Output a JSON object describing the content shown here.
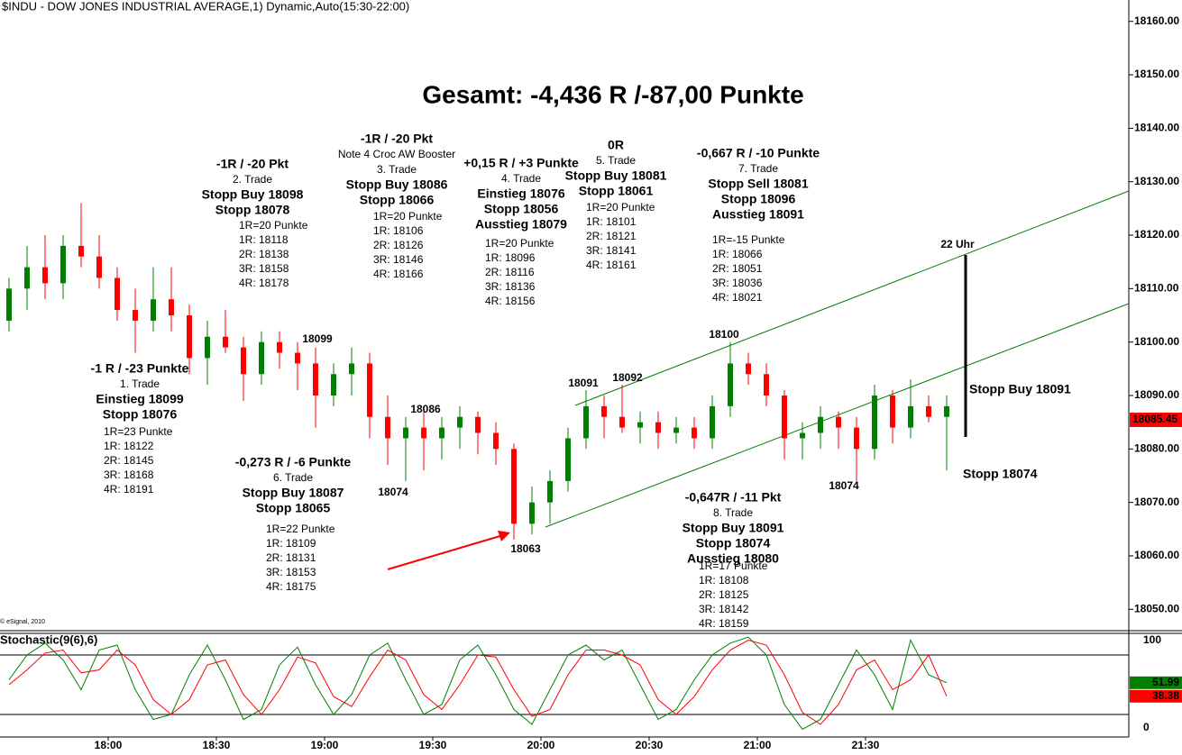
{
  "chart_data": [
    {
      "type": "candlestick",
      "title": "$INDU - DOW JONES INDUSTRIAL AVERAGE,1) Dynamic,Auto(15:30-22:00)",
      "headline": "Gesamt: -4,436 R /-87,00 Punkte",
      "copyright": "© eSignal, 2010",
      "categories": [
        null,
        null,
        null,
        null,
        null,
        null,
        "18:00",
        null,
        null,
        null,
        null,
        null,
        "18:30",
        null,
        null,
        null,
        null,
        null,
        "19:00",
        null,
        null,
        null,
        null,
        null,
        "19:30",
        null,
        null,
        null,
        null,
        null,
        "20:00",
        null,
        null,
        null,
        null,
        null,
        "20:30",
        null,
        null,
        null,
        null,
        null,
        "21:00",
        null,
        null,
        null,
        null,
        null,
        "21:30",
        null,
        null,
        null,
        null
      ],
      "open": [
        18104,
        18110,
        18114,
        18111,
        18118,
        18116,
        18112,
        18106,
        18104,
        18108,
        18105,
        18097,
        18101,
        18099,
        18094,
        18100,
        18098,
        18096,
        18090,
        18094,
        18096,
        18086,
        18082,
        18084,
        18082,
        18084,
        18086,
        18083,
        18080,
        18066,
        18070,
        18074,
        18082,
        18088,
        18086,
        18084,
        18085,
        18083,
        18084,
        18082,
        18088,
        18096,
        18094,
        18090,
        18082,
        18083,
        18086,
        18084,
        18080,
        18090,
        18084,
        18088,
        18086
      ],
      "high": [
        18112,
        18118,
        18120,
        18120,
        18126,
        18120,
        18114,
        18110,
        18114,
        18114,
        18107,
        18104,
        18106,
        18101,
        18102,
        18102,
        18100,
        18099,
        18096,
        18099,
        18098,
        18090,
        18086,
        18087,
        18086,
        18088,
        18087,
        18085,
        18081,
        18073,
        18076,
        18084,
        18091,
        18090,
        18092,
        18087,
        18087,
        18086,
        18086,
        18090,
        18100,
        18098,
        18096,
        18091,
        18085,
        18088,
        18087,
        18086,
        18092,
        18091,
        18093,
        18090,
        18090
      ],
      "low": [
        18102,
        18106,
        18108,
        18108,
        18114,
        18110,
        18104,
        18098,
        18102,
        18102,
        18094,
        18092,
        18098,
        18089,
        18092,
        18095,
        18091,
        18084,
        18088,
        18090,
        18082,
        18077,
        18074,
        18076,
        18078,
        18080,
        18079,
        18077,
        18063,
        18064,
        18066,
        18072,
        18080,
        18082,
        18083,
        18081,
        18080,
        18081,
        18080,
        18080,
        18086,
        18092,
        18088,
        18078,
        18078,
        18080,
        18080,
        18074,
        18078,
        18081,
        18082,
        18085,
        18076
      ],
      "close": [
        18110,
        18114,
        18111,
        18118,
        18116,
        18112,
        18106,
        18104,
        18108,
        18105,
        18097,
        18101,
        18099,
        18094,
        18100,
        18098,
        18096,
        18090,
        18094,
        18096,
        18086,
        18082,
        18084,
        18082,
        18084,
        18086,
        18083,
        18080,
        18066,
        18070,
        18074,
        18082,
        18088,
        18086,
        18084,
        18085,
        18083,
        18084,
        18082,
        18088,
        18096,
        18094,
        18090,
        18082,
        18083,
        18086,
        18084,
        18080,
        18090,
        18084,
        18088,
        18086,
        18088
      ],
      "up_color": "#008000",
      "down_color": "#ff0000",
      "last_price": 18085.45,
      "ylim": [
        18046,
        18164
      ],
      "yticks": [
        {
          "value": 18050,
          "label": "18050.00"
        },
        {
          "value": 18060,
          "label": "18060.00"
        },
        {
          "value": 18070,
          "label": "18070.00"
        },
        {
          "value": 18080,
          "label": "18080.00"
        },
        {
          "value": 18090,
          "label": "18090.00"
        },
        {
          "value": 18100,
          "label": "18100.00"
        },
        {
          "value": 18110,
          "label": "18110.00"
        },
        {
          "value": 18120,
          "label": "18120.00"
        },
        {
          "value": 18130,
          "label": "18130.00"
        },
        {
          "value": 18140,
          "label": "18140.00"
        },
        {
          "value": 18150,
          "label": "18150.00"
        },
        {
          "value": 18160,
          "label": "18160.00"
        }
      ],
      "price_labels": [
        "18099",
        "18086",
        "18074",
        "18063",
        "18091",
        "18092",
        "18100",
        "18074",
        "22 Uhr"
      ],
      "side_notes": [
        {
          "text": "Stopp Buy 18091",
          "color": "#0000ff"
        },
        {
          "text": "Stopp 18074",
          "color": "#0000ff"
        }
      ],
      "trade_notes": [
        {
          "heading": [
            {
              "text": "-1 R / -23 Punkte",
              "color": "#000000"
            },
            {
              "text": "1. Trade",
              "color": "#000000"
            },
            {
              "text": "Einstieg 18099",
              "color": "#008000"
            },
            {
              "text": "Stopp 18076",
              "color": "#008000"
            }
          ],
          "list": [
            "1R=23 Punkte",
            "1R: 18122",
            "2R: 18145",
            "3R: 18168",
            "4R: 18191"
          ]
        },
        {
          "heading": [
            {
              "text": "-1R / -20 Pkt",
              "color": "#000000"
            },
            {
              "text": "2. Trade",
              "color": "#000000"
            },
            {
              "text": "Stopp Buy 18098",
              "color": "#0000ff"
            },
            {
              "text": "Stopp 18078",
              "color": "#0000ff"
            }
          ],
          "list": [
            "1R=20 Punkte",
            "1R: 18118",
            "2R: 18138",
            "3R: 18158",
            "4R: 18178"
          ]
        },
        {
          "heading": [
            {
              "text": "-1R / -20 Pkt",
              "color": "#000000"
            },
            {
              "text": "Note 4 Croc AW Booster",
              "color": "#000000"
            },
            {
              "text": "3. Trade",
              "color": "#000000"
            },
            {
              "text": "Stopp Buy 18086",
              "color": "#ff00ff"
            },
            {
              "text": "Stopp 18066",
              "color": "#ff00ff"
            }
          ],
          "list": [
            "1R=20 Punkte",
            "1R: 18106",
            "2R: 18126",
            "3R: 18146",
            "4R: 18166"
          ]
        },
        {
          "heading": [
            {
              "text": "+0,15 R / +3 Punkte",
              "color": "#000000"
            },
            {
              "text": "4. Trade",
              "color": "#000000"
            },
            {
              "text": "Einstieg 18076",
              "color": "#008000"
            },
            {
              "text": "Stopp 18056",
              "color": "#008000"
            },
            {
              "text": "Ausstieg 18079",
              "color": "#008000"
            }
          ],
          "list": [
            "1R=20 Punkte",
            "1R: 18096",
            "2R: 18116",
            "3R: 18136",
            "4R: 18156"
          ]
        },
        {
          "heading": [
            {
              "text": "0R",
              "color": "#000000"
            },
            {
              "text": "5. Trade",
              "color": "#000000"
            },
            {
              "text": "Stopp Buy 18081",
              "color": "#0000ff"
            },
            {
              "text": "Stopp 18061",
              "color": "#0000ff"
            }
          ],
          "list": [
            "1R=20 Punkte",
            "1R: 18101",
            "2R: 18121",
            "3R: 18141",
            "4R: 18161"
          ]
        },
        {
          "heading": [
            {
              "text": "-0,667 R / -10 Punkte",
              "color": "#000000"
            },
            {
              "text": "7. Trade",
              "color": "#000000"
            },
            {
              "text": "Stopp Sell 18081",
              "color": "#ff0000"
            },
            {
              "text": "Stopp 18096",
              "color": "#ff0000"
            },
            {
              "text": "Ausstieg 18091",
              "color": "#ff0000"
            }
          ],
          "list": [
            "1R=-15 Punkte",
            "1R: 18066",
            "2R: 18051",
            "3R: 18036",
            "4R: 18021"
          ]
        },
        {
          "heading": [
            {
              "text": "-0,273 R / -6 Punkte",
              "color": "#000000"
            },
            {
              "text": "6. Trade",
              "color": "#000000"
            },
            {
              "text": "Stopp Buy 18087",
              "color": "#ff00ff"
            },
            {
              "text": "Stopp 18065",
              "color": "#ff00ff"
            }
          ],
          "list": [
            "1R=22 Punkte",
            "1R: 18109",
            "2R: 18131",
            "3R: 18153",
            "4R: 18175"
          ]
        },
        {
          "heading": [
            {
              "text": "-0,647R / -11 Pkt",
              "color": "#000000"
            },
            {
              "text": "8. Trade",
              "color": "#000000"
            },
            {
              "text": "Stopp Buy 18091",
              "color": "#0000ff"
            },
            {
              "text": "Stopp 18074",
              "color": "#0000ff"
            },
            {
              "text": "Ausstieg 18080",
              "color": "#0000ff"
            }
          ],
          "list": [
            "1R=17 Punkte",
            "1R: 18108",
            "2R: 18125",
            "3R: 18142",
            "4R: 18159"
          ]
        }
      ]
    },
    {
      "type": "line",
      "title": "Stochastic(9(6),6)",
      "title_color": "#008000",
      "ylim": [
        0,
        100
      ],
      "yticks": [
        0,
        100
      ],
      "levels": [
        20,
        80
      ],
      "series": [
        {
          "color": "#008000",
          "values": [
            55,
            80,
            92,
            75,
            45,
            85,
            90,
            45,
            15,
            20,
            60,
            90,
            55,
            15,
            25,
            70,
            88,
            50,
            20,
            40,
            80,
            92,
            55,
            20,
            30,
            75,
            90,
            60,
            25,
            10,
            45,
            80,
            90,
            75,
            85,
            50,
            15,
            25,
            55,
            80,
            92,
            98,
            80,
            30,
            5,
            15,
            50,
            85,
            60,
            25,
            95,
            60,
            51.99
          ]
        },
        {
          "color": "#ff0000",
          "values": [
            50,
            65,
            82,
            85,
            62,
            65,
            85,
            70,
            35,
            20,
            35,
            70,
            75,
            40,
            20,
            45,
            78,
            72,
            38,
            28,
            58,
            85,
            75,
            40,
            25,
            50,
            80,
            78,
            45,
            18,
            25,
            60,
            85,
            85,
            80,
            70,
            35,
            20,
            38,
            65,
            85,
            95,
            90,
            60,
            22,
            10,
            30,
            65,
            75,
            45,
            55,
            80,
            38.38
          ]
        }
      ]
    }
  ]
}
